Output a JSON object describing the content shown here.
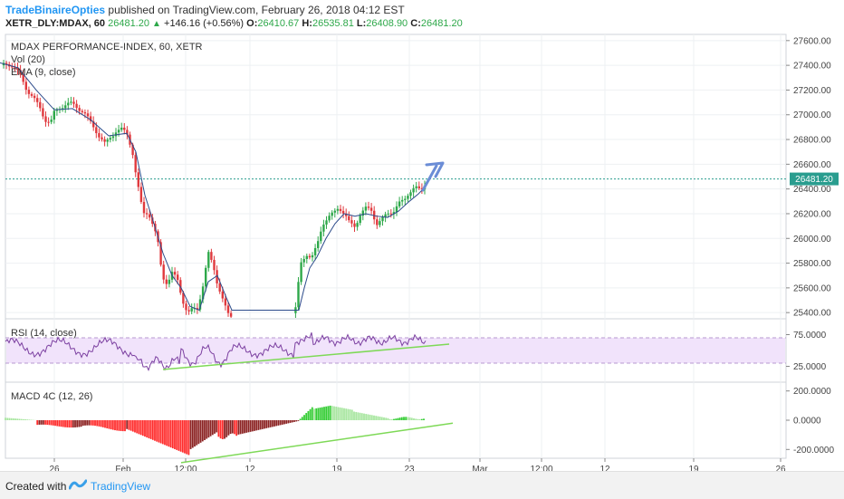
{
  "header": {
    "username": "TradeBinaireOpties",
    "published_text": "published on TradingView.com, February 26, 2018 04:12 EST",
    "symbol_interval": "XETR_DLY:MDAX, 60",
    "last_price": "26481.20",
    "change": "+146.16 (+0.56%)",
    "open_label": "O:",
    "open": "26410.67",
    "high_label": "H:",
    "high": "26535.81",
    "low_label": "L:",
    "low": "26408.90",
    "close_label": "C:",
    "close": "26481.20"
  },
  "footer": {
    "created_with": "Created with",
    "brand": "TradingView"
  },
  "chart_data": [
    {
      "type": "candlestick",
      "title": "MDAX PERFORMANCE-INDEX, 60, XETR",
      "indicators": [
        "Vol (20)",
        "EMA (9, close)"
      ],
      "ylim": [
        25350,
        27650
      ],
      "y_ticks": [
        "27600.00",
        "27400.00",
        "27200.00",
        "27000.00",
        "26800.00",
        "26600.00",
        "26400.00",
        "26200.00",
        "26000.00",
        "25800.00",
        "25600.00",
        "25400.00"
      ],
      "last_price_label": "26481.20",
      "last_price": 26481.2,
      "annotation": "projected upward arrow",
      "colors": {
        "up": "#2ea84a",
        "down": "#e0393e",
        "ema": "#2b4a8a",
        "arrow": "#6b8dd6"
      },
      "close_path": [
        [
          0,
          27400
        ],
        [
          8,
          27420
        ],
        [
          16,
          27380
        ],
        [
          24,
          27300
        ],
        [
          30,
          27200
        ],
        [
          38,
          27120
        ],
        [
          44,
          27060
        ],
        [
          50,
          26960
        ],
        [
          56,
          26930
        ],
        [
          60,
          27020
        ],
        [
          66,
          27060
        ],
        [
          72,
          27080
        ],
        [
          80,
          27090
        ],
        [
          86,
          27060
        ],
        [
          92,
          27020
        ],
        [
          98,
          26960
        ],
        [
          104,
          26900
        ],
        [
          110,
          26820
        ],
        [
          116,
          26760
        ],
        [
          122,
          26820
        ],
        [
          128,
          26870
        ],
        [
          134,
          26880
        ],
        [
          140,
          26850
        ],
        [
          146,
          26720
        ],
        [
          150,
          26520
        ],
        [
          154,
          26350
        ],
        [
          158,
          26200
        ],
        [
          162,
          26210
        ],
        [
          166,
          26180
        ],
        [
          170,
          26080
        ],
        [
          174,
          25980
        ],
        [
          178,
          25760
        ],
        [
          182,
          25640
        ],
        [
          186,
          25660
        ],
        [
          190,
          25720
        ],
        [
          196,
          25660
        ],
        [
          200,
          25550
        ],
        [
          204,
          25450
        ],
        [
          208,
          25400
        ],
        [
          212,
          25420
        ],
        [
          218,
          25430
        ],
        [
          224,
          25620
        ],
        [
          230,
          25880
        ],
        [
          236,
          25760
        ],
        [
          240,
          25640
        ],
        [
          244,
          25560
        ],
        [
          248,
          25460
        ],
        [
          252,
          25380
        ],
        [
          256,
          25360
        ],
        [
          260,
          25360
        ],
        [
          300,
          25360
        ],
        [
          326,
          25400
        ],
        [
          332,
          25800
        ],
        [
          338,
          25880
        ],
        [
          344,
          25830
        ],
        [
          350,
          25940
        ],
        [
          356,
          26120
        ],
        [
          362,
          26160
        ],
        [
          368,
          26200
        ],
        [
          374,
          26260
        ],
        [
          380,
          26200
        ],
        [
          386,
          26120
        ],
        [
          392,
          26100
        ],
        [
          398,
          26200
        ],
        [
          404,
          26240
        ],
        [
          410,
          26230
        ],
        [
          416,
          26120
        ],
        [
          422,
          26150
        ],
        [
          428,
          26200
        ],
        [
          434,
          26220
        ],
        [
          440,
          26280
        ],
        [
          446,
          26300
        ],
        [
          452,
          26380
        ],
        [
          458,
          26420
        ],
        [
          464,
          26380
        ],
        [
          468,
          26400
        ],
        [
          470,
          26481
        ]
      ],
      "ema_path": [
        [
          0,
          27420
        ],
        [
          20,
          27380
        ],
        [
          40,
          27200
        ],
        [
          60,
          27040
        ],
        [
          80,
          27050
        ],
        [
          100,
          26960
        ],
        [
          120,
          26830
        ],
        [
          140,
          26850
        ],
        [
          150,
          26700
        ],
        [
          160,
          26350
        ],
        [
          170,
          26120
        ],
        [
          180,
          25880
        ],
        [
          190,
          25700
        ],
        [
          200,
          25600
        ],
        [
          210,
          25450
        ],
        [
          220,
          25420
        ],
        [
          230,
          25650
        ],
        [
          240,
          25700
        ],
        [
          250,
          25520
        ],
        [
          256,
          25420
        ],
        [
          330,
          25420
        ],
        [
          336,
          25600
        ],
        [
          342,
          25760
        ],
        [
          350,
          25850
        ],
        [
          360,
          26000
        ],
        [
          370,
          26120
        ],
        [
          380,
          26200
        ],
        [
          392,
          26180
        ],
        [
          404,
          26200
        ],
        [
          416,
          26180
        ],
        [
          428,
          26170
        ],
        [
          440,
          26220
        ],
        [
          452,
          26300
        ],
        [
          462,
          26360
        ],
        [
          470,
          26420
        ]
      ]
    },
    {
      "type": "line",
      "title": "RSI (14, close)",
      "ylim": [
        0,
        100
      ],
      "y_ticks": [
        "75.0000",
        "25.0000"
      ],
      "band": [
        30,
        70
      ],
      "colors": {
        "line": "#7b3fa0",
        "band": "#f1e3fb",
        "trend": "#7ed957"
      },
      "trendline": [
        [
          180,
          20
        ],
        [
          496,
          60
        ]
      ]
    },
    {
      "type": "bar",
      "title": "MACD 4C (12, 26)",
      "ylim": [
        -260,
        260
      ],
      "y_ticks": [
        "200.0000",
        "0.0000",
        "-200.0000"
      ],
      "colors": {
        "up_rising": "#33cc33",
        "up_falling": "#a8e6a0",
        "down_falling": "#ff2b2b",
        "down_rising": "#8b2222",
        "trend": "#7ed957"
      },
      "trendline": [
        [
          200,
          -290
        ],
        [
          500,
          -20
        ]
      ]
    }
  ],
  "x_axis": {
    "ticks": [
      {
        "x": 60,
        "label": "26"
      },
      {
        "x": 136,
        "label": "Feb"
      },
      {
        "x": 205,
        "label": "12:00"
      },
      {
        "x": 276,
        "label": "12"
      },
      {
        "x": 372,
        "label": "19"
      },
      {
        "x": 452,
        "label": "23"
      },
      {
        "x": 530,
        "label": "Mar"
      },
      {
        "x": 598,
        "label": "12:00"
      },
      {
        "x": 668,
        "label": "12"
      },
      {
        "x": 766,
        "label": "19"
      },
      {
        "x": 862,
        "label": "26"
      }
    ]
  }
}
